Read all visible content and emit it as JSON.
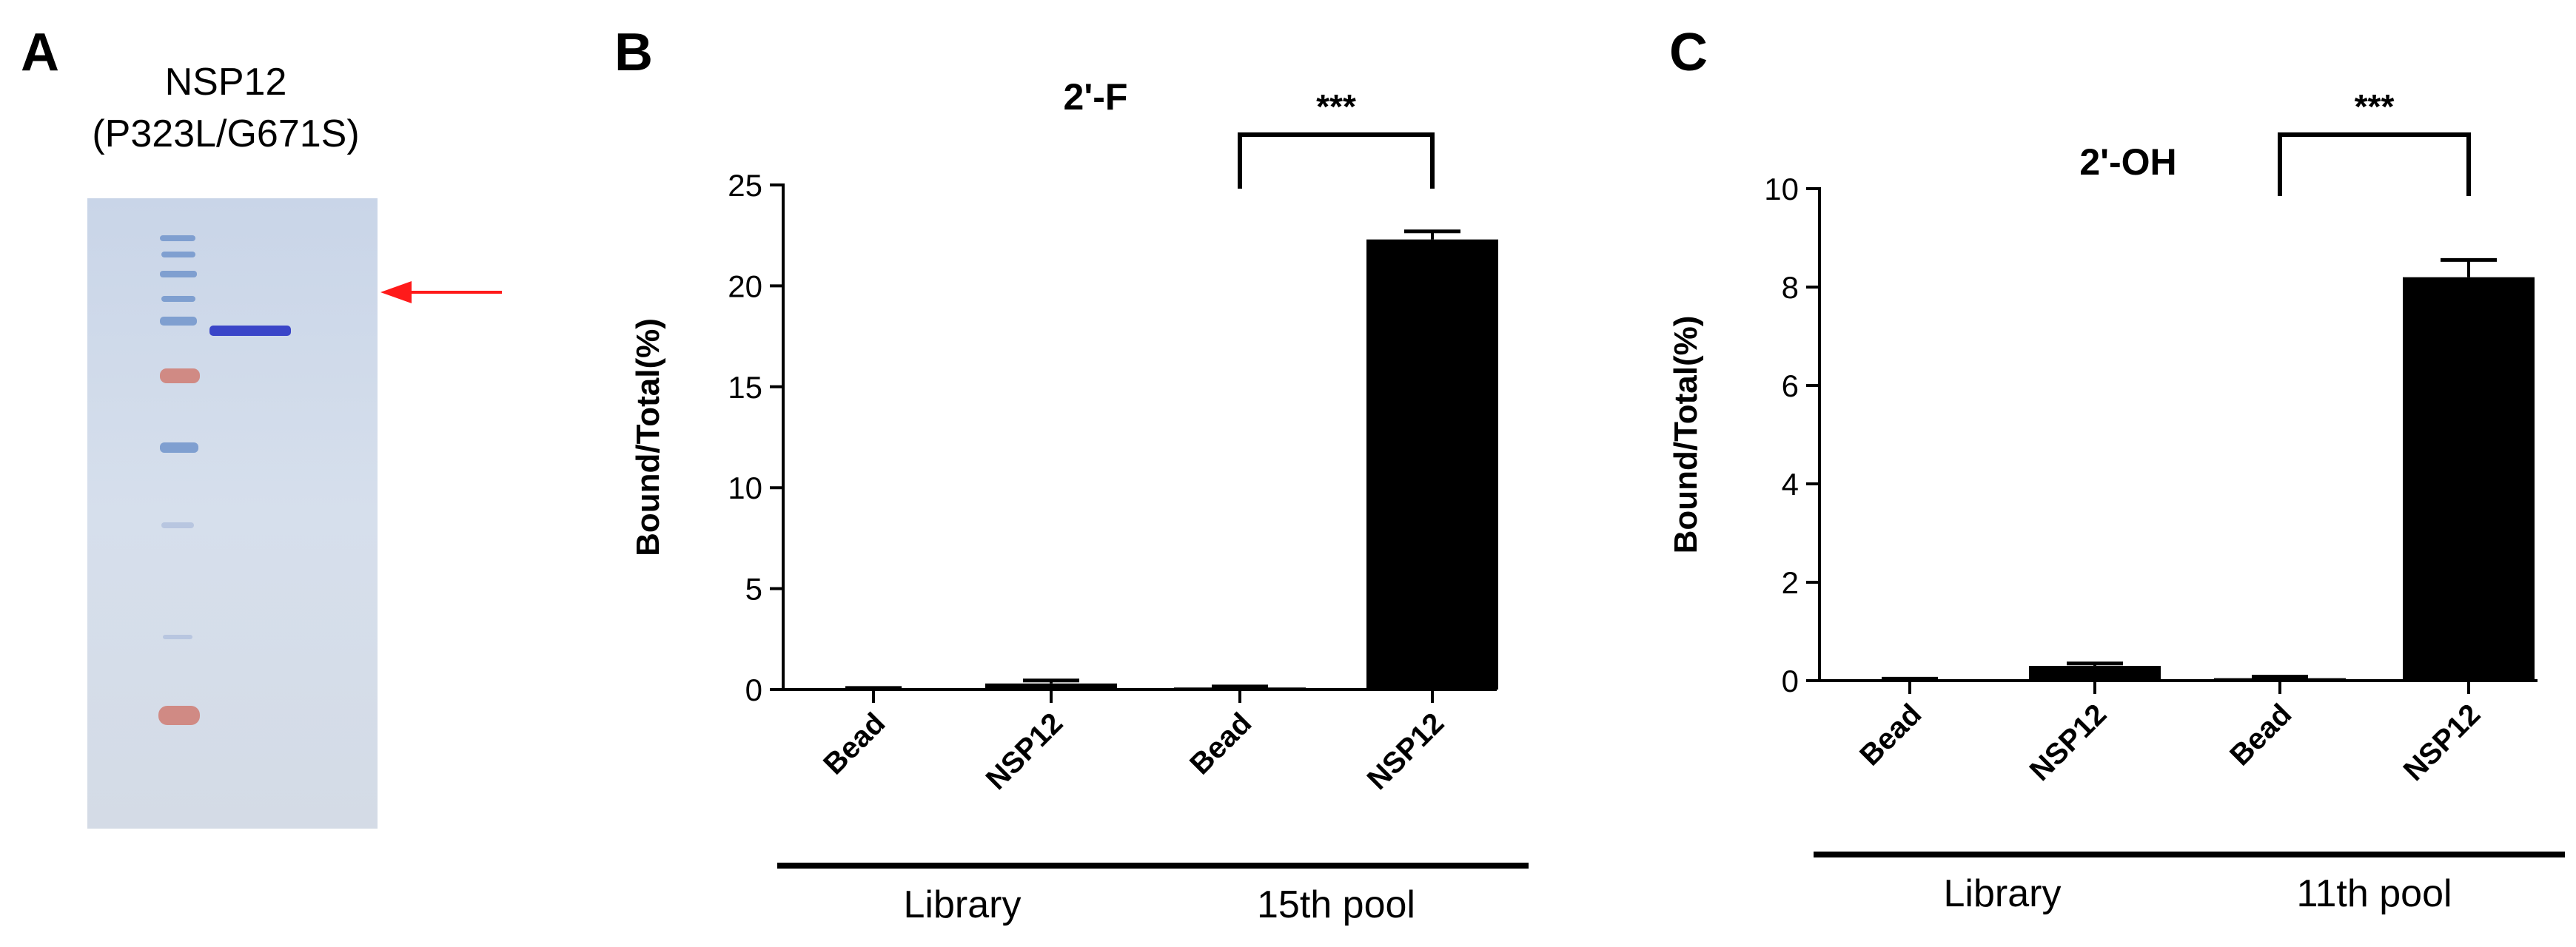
{
  "panels": {
    "a": "A",
    "b": "B",
    "c": "C"
  },
  "gel": {
    "title_line1": "NSP12",
    "title_line2": "(P323L/G671S)",
    "arrow_color": "#ff1a1a",
    "ladder_band_colors": [
      "#7f9fd0",
      "#7f9fd0",
      "#d08a84",
      "#7f9fd0",
      "#b8c6e0",
      "#d08a84"
    ],
    "sample_band_color": "#3a45c8"
  },
  "chart_data": [
    {
      "type": "bar",
      "title": "2'-F",
      "ylabel": "Bound/Total(%)",
      "categories": [
        "Bead",
        "NSP12",
        "Bead",
        "NSP12"
      ],
      "values": [
        0.05,
        0.3,
        0.1,
        22.3
      ],
      "errors": [
        0.03,
        0.15,
        0.05,
        0.4
      ],
      "ylim": [
        0,
        25
      ],
      "yticks": [
        "0",
        "5",
        "10",
        "15",
        "20",
        "25"
      ],
      "groups": [
        {
          "label": "Library",
          "members": [
            0,
            1
          ]
        },
        {
          "label": "15th pool",
          "members": [
            2,
            3
          ]
        }
      ],
      "significance": {
        "label": "***",
        "between": [
          2,
          3
        ]
      },
      "bar_color": "#000000",
      "grid": false
    },
    {
      "type": "bar",
      "title": "2'-OH",
      "ylabel": "Bound/Total(%)",
      "categories": [
        "Bead",
        "NSP12",
        "Bead",
        "NSP12"
      ],
      "values": [
        0.02,
        0.3,
        0.05,
        8.2
      ],
      "errors": [
        0.02,
        0.05,
        0.03,
        0.35
      ],
      "ylim": [
        0,
        10
      ],
      "yticks": [
        "0",
        "2",
        "4",
        "6",
        "8",
        "10"
      ],
      "groups": [
        {
          "label": "Library",
          "members": [
            0,
            1
          ]
        },
        {
          "label": "11th pool",
          "members": [
            2,
            3
          ]
        }
      ],
      "significance": {
        "label": "***",
        "between": [
          2,
          3
        ]
      },
      "bar_color": "#000000",
      "grid": false
    }
  ]
}
